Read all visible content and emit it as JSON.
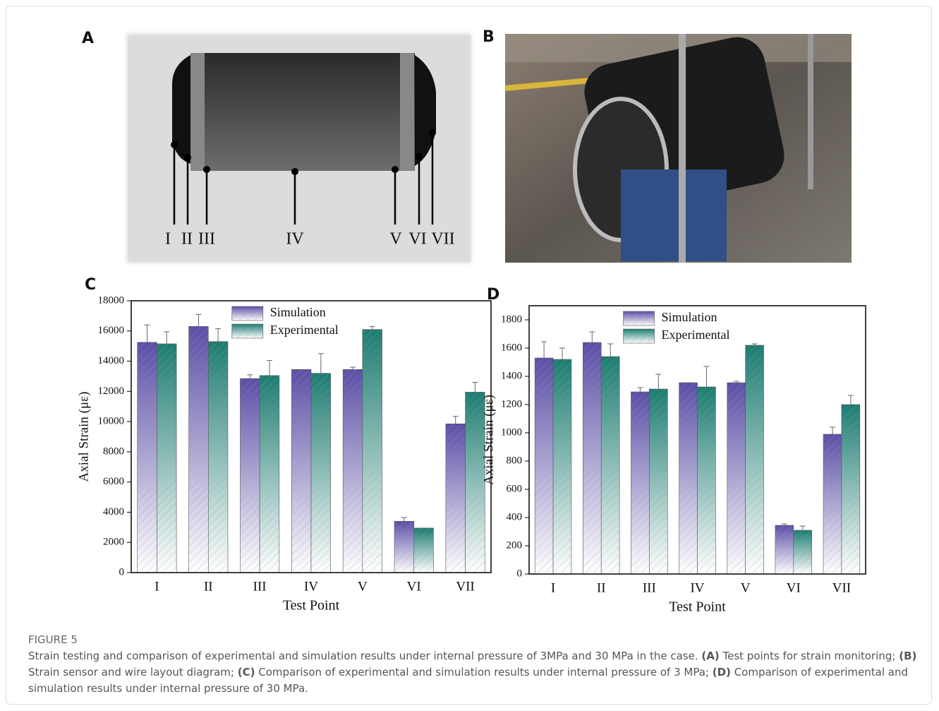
{
  "panels": {
    "a": "A",
    "b": "B"
  },
  "diagram": {
    "labels": [
      "I",
      "II",
      "III",
      "IV",
      "V",
      "VI",
      "VII"
    ]
  },
  "chart_data": [
    {
      "type": "bar",
      "panel": "C",
      "x_label": "Test Point",
      "y_label": "Axial Strain (με)",
      "categories": [
        "I",
        "II",
        "III",
        "IV",
        "V",
        "VI",
        "VII"
      ],
      "series": [
        {
          "name": "Simulation",
          "color": "#5b4fa8",
          "values": [
            15250,
            16300,
            12850,
            13450,
            13450,
            3400,
            9850
          ],
          "errors": [
            1150,
            800,
            250,
            0,
            150,
            250,
            500
          ]
        },
        {
          "name": "Experimental",
          "color": "#1d7d72",
          "values": [
            15150,
            15300,
            13050,
            13200,
            16100,
            2950,
            11950
          ],
          "errors": [
            800,
            850,
            1000,
            1300,
            200,
            0,
            650
          ]
        }
      ],
      "ylim": [
        0,
        18000
      ],
      "yticks": [
        0,
        2000,
        4000,
        6000,
        8000,
        10000,
        12000,
        14000,
        16000,
        18000
      ],
      "legend": "upper center"
    },
    {
      "type": "bar",
      "panel": "D",
      "x_label": "Test Point",
      "y_label": "Axial Strain (με)",
      "categories": [
        "I",
        "II",
        "III",
        "IV",
        "V",
        "VI",
        "VII"
      ],
      "series": [
        {
          "name": "Simulation",
          "color": "#5b4fa8",
          "values": [
            1530,
            1640,
            1290,
            1355,
            1355,
            345,
            990
          ],
          "errors": [
            115,
            75,
            30,
            0,
            10,
            10,
            50
          ]
        },
        {
          "name": "Experimental",
          "color": "#1d7d72",
          "values": [
            1520,
            1540,
            1310,
            1325,
            1620,
            310,
            1200
          ],
          "errors": [
            80,
            90,
            105,
            145,
            10,
            30,
            65
          ]
        }
      ],
      "ylim": [
        0,
        1900
      ],
      "yticks": [
        0,
        200,
        400,
        600,
        800,
        1000,
        1200,
        1400,
        1600,
        1800
      ],
      "legend": "upper center"
    }
  ],
  "caption": {
    "label": "FIGURE 5",
    "intro": "Strain testing and comparison of experimental and simulation results under internal pressure of 3MPa and 30 MPa in the case.",
    "items": [
      {
        "tag": "(A)",
        "text": "Test points for strain monitoring;"
      },
      {
        "tag": "(B)",
        "text": "Strain sensor and wire layout diagram;"
      },
      {
        "tag": "(C)",
        "text": "Comparison of experimental and simulation results under internal pressure of 3 MPa;"
      },
      {
        "tag": "(D)",
        "text": "Comparison of experimental and simulation results under internal pressure of 30 MPa."
      }
    ]
  }
}
